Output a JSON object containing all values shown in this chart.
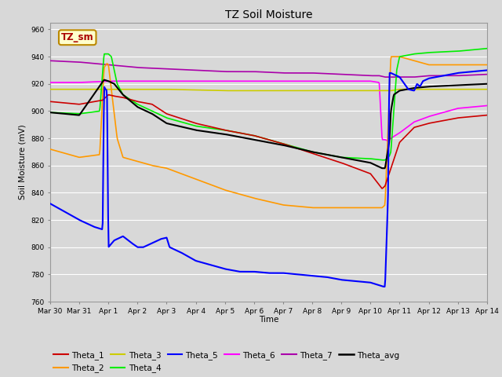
{
  "title": "TZ Soil Moisture",
  "xlabel": "Time",
  "ylabel": "Soil Moisture (mV)",
  "ylim": [
    760,
    965
  ],
  "yticks": [
    760,
    780,
    800,
    820,
    840,
    860,
    880,
    900,
    920,
    940,
    960
  ],
  "bg_color": "#d8d8d8",
  "plot_bg_color": "#d8d8d8",
  "label_box_text": "TZ_sm",
  "label_box_facecolor": "#ffffcc",
  "label_box_edgecolor": "#bb8800",
  "series_colors": {
    "Theta_1": "#cc0000",
    "Theta_2": "#ff9900",
    "Theta_3": "#cccc00",
    "Theta_4": "#00ee00",
    "Theta_5": "#0000ff",
    "Theta_6": "#ff00ff",
    "Theta_7": "#aa00aa",
    "Theta_avg": "#000000"
  }
}
